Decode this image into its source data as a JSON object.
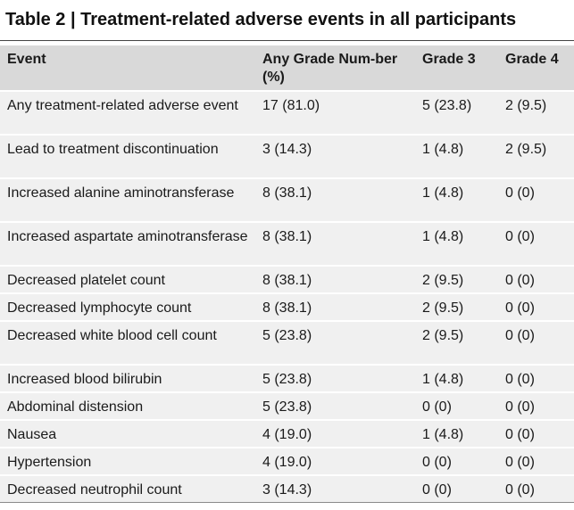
{
  "title": "Table 2 | Treatment-related adverse events in all participants",
  "columns": {
    "event": "Event",
    "any_grade": "Any Grade Num-ber (%)",
    "grade3": "Grade 3",
    "grade4": "Grade 4"
  },
  "rows": [
    {
      "event": "Any treatment-related adverse event",
      "any_grade": "17 (81.0)",
      "grade3": "5 (23.8)",
      "grade4": "2 (9.5)"
    },
    {
      "event": "Lead to treatment discontinuation",
      "any_grade": "3 (14.3)",
      "grade3": "1 (4.8)",
      "grade4": "2 (9.5)"
    },
    {
      "event": "Increased alanine aminotransferase",
      "any_grade": "8 (38.1)",
      "grade3": "1 (4.8)",
      "grade4": "0 (0)"
    },
    {
      "event": "Increased aspartate aminotransferase",
      "any_grade": "8 (38.1)",
      "grade3": "1 (4.8)",
      "grade4": "0 (0)"
    },
    {
      "event": "Decreased platelet count",
      "any_grade": "8 (38.1)",
      "grade3": "2 (9.5)",
      "grade4": "0 (0)"
    },
    {
      "event": "Decreased lymphocyte count",
      "any_grade": "8 (38.1)",
      "grade3": "2 (9.5)",
      "grade4": "0 (0)"
    },
    {
      "event": "Decreased white blood cell count",
      "any_grade": "5 (23.8)",
      "grade3": "2 (9.5)",
      "grade4": "0 (0)"
    },
    {
      "event": "Increased blood bilirubin",
      "any_grade": "5 (23.8)",
      "grade3": "1 (4.8)",
      "grade4": "0 (0)"
    },
    {
      "event": "Abdominal distension",
      "any_grade": "5 (23.8)",
      "grade3": "0 (0)",
      "grade4": "0 (0)"
    },
    {
      "event": "Nausea",
      "any_grade": "4 (19.0)",
      "grade3": "1 (4.8)",
      "grade4": "0 (0)"
    },
    {
      "event": "Hypertension",
      "any_grade": "4 (19.0)",
      "grade3": "0 (0)",
      "grade4": "0 (0)"
    },
    {
      "event": "Decreased neutrophil count",
      "any_grade": "3 (14.3)",
      "grade3": "0 (0)",
      "grade4": "0 (0)"
    }
  ]
}
